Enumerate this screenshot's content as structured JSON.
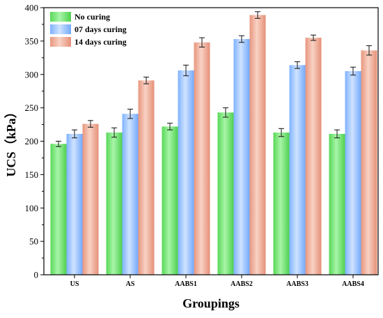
{
  "chart_data": {
    "type": "bar",
    "xlabel": "Groupings",
    "ylabel": "UCS（kPa）",
    "ylim": [
      0,
      400
    ],
    "yticks": [
      0,
      50,
      100,
      150,
      200,
      250,
      300,
      350,
      400
    ],
    "grid": false,
    "legend_position": "top-left",
    "categories": [
      "US",
      "AS",
      "AABS1",
      "AABS2",
      "AABS3",
      "AABS4"
    ],
    "series": [
      {
        "name": "No curing",
        "color": "#6ee36e",
        "values": [
          196,
          213,
          222,
          243,
          213,
          211
        ],
        "errors": [
          4,
          7,
          5,
          7,
          6,
          6
        ]
      },
      {
        "name": "07 days curing",
        "color": "#8fbfff",
        "values": [
          211,
          241,
          306,
          353,
          314,
          305
        ],
        "errors": [
          6,
          7,
          8,
          5,
          5,
          6
        ]
      },
      {
        "name": "14 days curing",
        "color": "#eea892",
        "values": [
          226,
          291,
          348,
          389,
          355,
          336
        ],
        "errors": [
          5,
          5,
          7,
          5,
          4,
          7
        ]
      }
    ]
  }
}
